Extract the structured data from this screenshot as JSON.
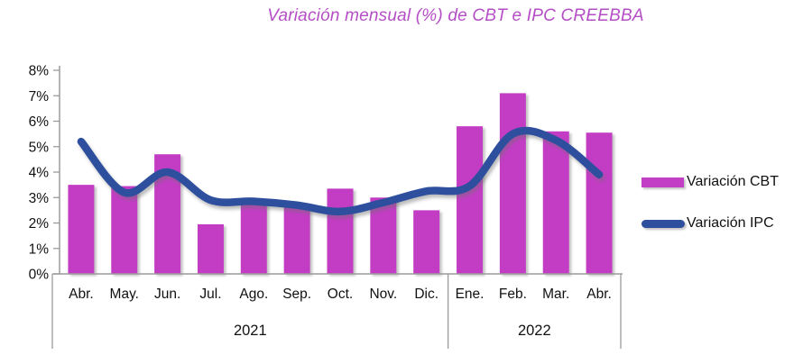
{
  "title": "Variación mensual (%) de CBT e IPC CREEBBA",
  "legend": {
    "cbt_label": "Variación CBT",
    "ipc_label": "Variación IPC"
  },
  "colors": {
    "bar": "#c23ec4",
    "line": "#2e4f9e",
    "title": "#b44ec4",
    "axis": "#9b9b9b",
    "text": "#111111"
  },
  "chart_data": {
    "type": "bar",
    "subtype": "bar+line combo",
    "title": "Variación mensual (%) de CBT e IPC CREEBBA",
    "categories": [
      "Abr.",
      "May.",
      "Jun.",
      "Jul.",
      "Ago.",
      "Sep.",
      "Oct.",
      "Nov.",
      "Dic.",
      "Ene.",
      "Feb.",
      "Mar.",
      "Abr."
    ],
    "year_groups": [
      {
        "label": "2021",
        "span": 9
      },
      {
        "label": "2022",
        "span": 4
      }
    ],
    "series": [
      {
        "name": "Variación CBT",
        "type": "bar",
        "values": [
          3.5,
          3.45,
          4.7,
          1.95,
          2.9,
          2.6,
          3.35,
          3.0,
          2.5,
          5.8,
          7.1,
          5.6,
          5.55
        ]
      },
      {
        "name": "Variación IPC",
        "type": "line",
        "values": [
          5.2,
          3.2,
          4.0,
          2.9,
          2.85,
          2.7,
          2.45,
          2.8,
          3.25,
          3.45,
          5.5,
          5.25,
          3.9
        ]
      }
    ],
    "xlabel": "",
    "ylabel": "",
    "ylim": [
      0,
      8
    ],
    "ytick_step": 1,
    "ytick_labels": [
      "0%",
      "1%",
      "2%",
      "3%",
      "4%",
      "5%",
      "6%",
      "7%",
      "8%"
    ],
    "grid": false,
    "legend_position": "right"
  }
}
